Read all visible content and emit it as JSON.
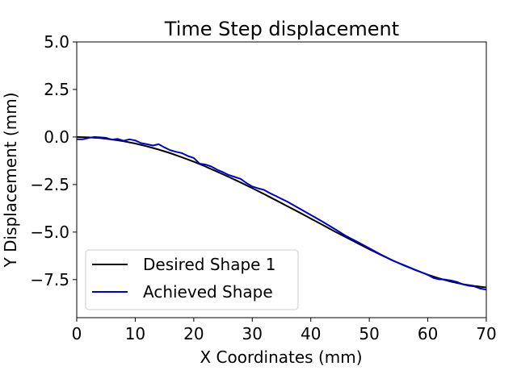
{
  "chart_data": {
    "type": "line",
    "title": "Time Step displacement",
    "xlabel": "X Coordinates (mm)",
    "ylabel": "Y Displacement (mm)",
    "xlim": [
      0,
      70
    ],
    "ylim": [
      -9.5,
      5.0
    ],
    "xticks": [
      0,
      10,
      20,
      30,
      40,
      50,
      60,
      70
    ],
    "xtick_labels": [
      "0",
      "10",
      "20",
      "30",
      "40",
      "50",
      "60",
      "70"
    ],
    "yticks": [
      5.0,
      2.5,
      0.0,
      -2.5,
      -5.0,
      -7.5
    ],
    "ytick_labels": [
      "5.0",
      "2.5",
      "0.0",
      "−2.5",
      "−5.0",
      "−7.5"
    ],
    "grid": false,
    "legend": "lower-left",
    "series": [
      {
        "name": "Desired Shape 1",
        "color": "#000000",
        "x": [
          0,
          2,
          4,
          6,
          8,
          10,
          12,
          14,
          16,
          18,
          20,
          22,
          24,
          26,
          28,
          30,
          32,
          34,
          36,
          38,
          40,
          42,
          44,
          46,
          48,
          50,
          52,
          54,
          56,
          58,
          60,
          62,
          64,
          66,
          68,
          70
        ],
        "y": [
          0.0,
          -0.02,
          -0.06,
          -0.13,
          -0.22,
          -0.34,
          -0.49,
          -0.66,
          -0.85,
          -1.07,
          -1.3,
          -1.55,
          -1.82,
          -2.1,
          -2.39,
          -2.69,
          -3.0,
          -3.32,
          -3.64,
          -3.96,
          -4.29,
          -4.62,
          -4.95,
          -5.27,
          -5.59,
          -5.9,
          -6.2,
          -6.49,
          -6.76,
          -7.01,
          -7.24,
          -7.44,
          -7.61,
          -7.74,
          -7.84,
          -7.91
        ]
      },
      {
        "name": "Achieved Shape",
        "color": "#0000cc",
        "x": [
          0,
          1,
          2,
          3,
          4,
          5,
          6,
          7,
          8,
          9,
          10,
          11,
          12,
          13,
          14,
          15,
          16,
          17,
          18,
          19,
          20,
          21,
          22,
          23,
          24,
          25,
          26,
          27,
          28,
          29,
          30,
          31,
          32,
          33,
          34,
          35,
          36,
          38,
          40,
          42,
          44,
          46,
          48,
          50,
          52,
          54,
          56,
          58,
          60,
          61,
          62,
          63,
          64,
          65,
          66,
          67,
          68,
          69,
          70
        ],
        "y": [
          -0.12,
          -0.12,
          -0.05,
          0.0,
          -0.02,
          -0.04,
          -0.14,
          -0.1,
          -0.2,
          -0.12,
          -0.18,
          -0.32,
          -0.38,
          -0.45,
          -0.38,
          -0.55,
          -0.7,
          -0.78,
          -0.85,
          -1.0,
          -1.1,
          -1.4,
          -1.45,
          -1.55,
          -1.72,
          -1.85,
          -2.0,
          -2.1,
          -2.2,
          -2.42,
          -2.6,
          -2.7,
          -2.78,
          -2.95,
          -3.1,
          -3.25,
          -3.4,
          -3.75,
          -4.1,
          -4.45,
          -4.82,
          -5.2,
          -5.52,
          -5.85,
          -6.18,
          -6.5,
          -6.75,
          -7.0,
          -7.25,
          -7.42,
          -7.48,
          -7.5,
          -7.55,
          -7.62,
          -7.75,
          -7.82,
          -7.86,
          -7.97,
          -8.03
        ]
      }
    ]
  }
}
